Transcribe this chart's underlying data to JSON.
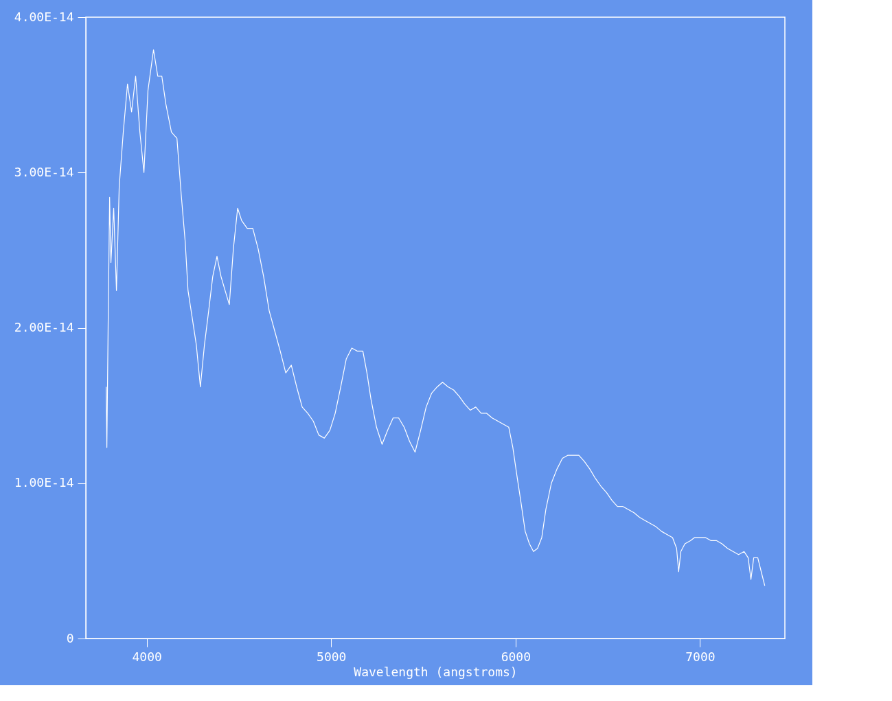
{
  "chart_data": {
    "type": "line",
    "xlabel": "Wavelength (angstroms)",
    "xlim": [
      3670,
      7460
    ],
    "xticks": [
      4000,
      5000,
      6000,
      7000
    ],
    "ylim": [
      0,
      4e-14
    ],
    "yticks": [
      0,
      {
        "value": 1e-14,
        "label": "1.00E-14"
      },
      {
        "value": 2e-14,
        "label": "2.00E-14"
      },
      {
        "value": 3e-14,
        "label": "3.00E-14"
      },
      {
        "value": 4e-14,
        "label": "4.00E-14"
      }
    ],
    "grid": false,
    "marker": "none",
    "line_style": "solid",
    "series": [
      {
        "color": "#ffffff",
        "x": [
          3780,
          3784,
          3791,
          3799,
          3806,
          3821,
          3836,
          3851,
          3873,
          3896,
          3918,
          3940,
          3963,
          3985,
          4007,
          4037,
          4060,
          4082,
          4104,
          4134,
          4164,
          4187,
          4209,
          4224,
          4246,
          4269,
          4291,
          4313,
          4336,
          4358,
          4381,
          4403,
          4425,
          4448,
          4470,
          4493,
          4515,
          4545,
          4575,
          4604,
          4634,
          4664,
          4694,
          4724,
          4754,
          4784,
          4813,
          4843,
          4873,
          4903,
          4933,
          4963,
          4993,
          5022,
          5052,
          5082,
          5112,
          5142,
          5172,
          5194,
          5216,
          5246,
          5276,
          5306,
          5336,
          5366,
          5396,
          5425,
          5455,
          5485,
          5515,
          5545,
          5575,
          5604,
          5634,
          5664,
          5694,
          5724,
          5754,
          5784,
          5813,
          5843,
          5873,
          5903,
          5933,
          5963,
          5985,
          6007,
          6030,
          6052,
          6075,
          6097,
          6119,
          6142,
          6164,
          6194,
          6224,
          6254,
          6284,
          6313,
          6343,
          6373,
          6403,
          6433,
          6463,
          6493,
          6522,
          6552,
          6582,
          6612,
          6642,
          6672,
          6701,
          6731,
          6761,
          6791,
          6821,
          6851,
          6873,
          6884,
          6896,
          6918,
          6948,
          6970,
          7000,
          7030,
          7060,
          7090,
          7119,
          7149,
          7179,
          7209,
          7239,
          7261,
          7276,
          7291,
          7313,
          7336,
          7351
        ],
        "values": [
          1.62e-14,
          1.23e-14,
          2.02e-14,
          2.84e-14,
          2.42e-14,
          2.77e-14,
          2.24e-14,
          2.91e-14,
          3.26e-14,
          3.57e-14,
          3.39e-14,
          3.62e-14,
          3.26e-14,
          3e-14,
          3.53e-14,
          3.79e-14,
          3.62e-14,
          3.62e-14,
          3.44e-14,
          3.26e-14,
          3.22e-14,
          2.86e-14,
          2.55e-14,
          2.24e-14,
          2.07e-14,
          1.89e-14,
          1.62e-14,
          1.89e-14,
          2.11e-14,
          2.33e-14,
          2.46e-14,
          2.33e-14,
          2.24e-14,
          2.15e-14,
          2.51e-14,
          2.77e-14,
          2.69e-14,
          2.64e-14,
          2.64e-14,
          2.51e-14,
          2.33e-14,
          2.11e-14,
          1.98e-14,
          1.85e-14,
          1.71e-14,
          1.76e-14,
          1.62e-14,
          1.49e-14,
          1.45e-14,
          1.4e-14,
          1.31e-14,
          1.29e-14,
          1.34e-14,
          1.45e-14,
          1.62e-14,
          1.8e-14,
          1.87e-14,
          1.85e-14,
          1.85e-14,
          1.71e-14,
          1.54e-14,
          1.36e-14,
          1.25e-14,
          1.34e-14,
          1.42e-14,
          1.42e-14,
          1.36e-14,
          1.27e-14,
          1.2e-14,
          1.34e-14,
          1.49e-14,
          1.58e-14,
          1.62e-14,
          1.65e-14,
          1.62e-14,
          1.6e-14,
          1.56e-14,
          1.51e-14,
          1.47e-14,
          1.49e-14,
          1.45e-14,
          1.45e-14,
          1.42e-14,
          1.4e-14,
          1.38e-14,
          1.36e-14,
          1.23e-14,
          1.05e-14,
          8.7e-15,
          6.9e-15,
          6.1e-15,
          5.6e-15,
          5.8e-15,
          6.5e-15,
          8.3e-15,
          1e-14,
          1.09e-14,
          1.16e-14,
          1.18e-14,
          1.18e-14,
          1.18e-14,
          1.14e-14,
          1.09e-14,
          1.03e-14,
          9.8e-15,
          9.4e-15,
          8.9e-15,
          8.5e-15,
          8.5e-15,
          8.3e-15,
          8.1e-15,
          7.8e-15,
          7.6e-15,
          7.4e-15,
          7.2e-15,
          6.9e-15,
          6.7e-15,
          6.5e-15,
          5.8e-15,
          4.3e-15,
          5.6e-15,
          6.1e-15,
          6.3e-15,
          6.5e-15,
          6.5e-15,
          6.5e-15,
          6.3e-15,
          6.3e-15,
          6.1e-15,
          5.8e-15,
          5.6e-15,
          5.4e-15,
          5.6e-15,
          5.2e-15,
          3.8e-15,
          5.2e-15,
          5.2e-15,
          4.1e-15,
          3.4e-15
        ]
      }
    ]
  }
}
